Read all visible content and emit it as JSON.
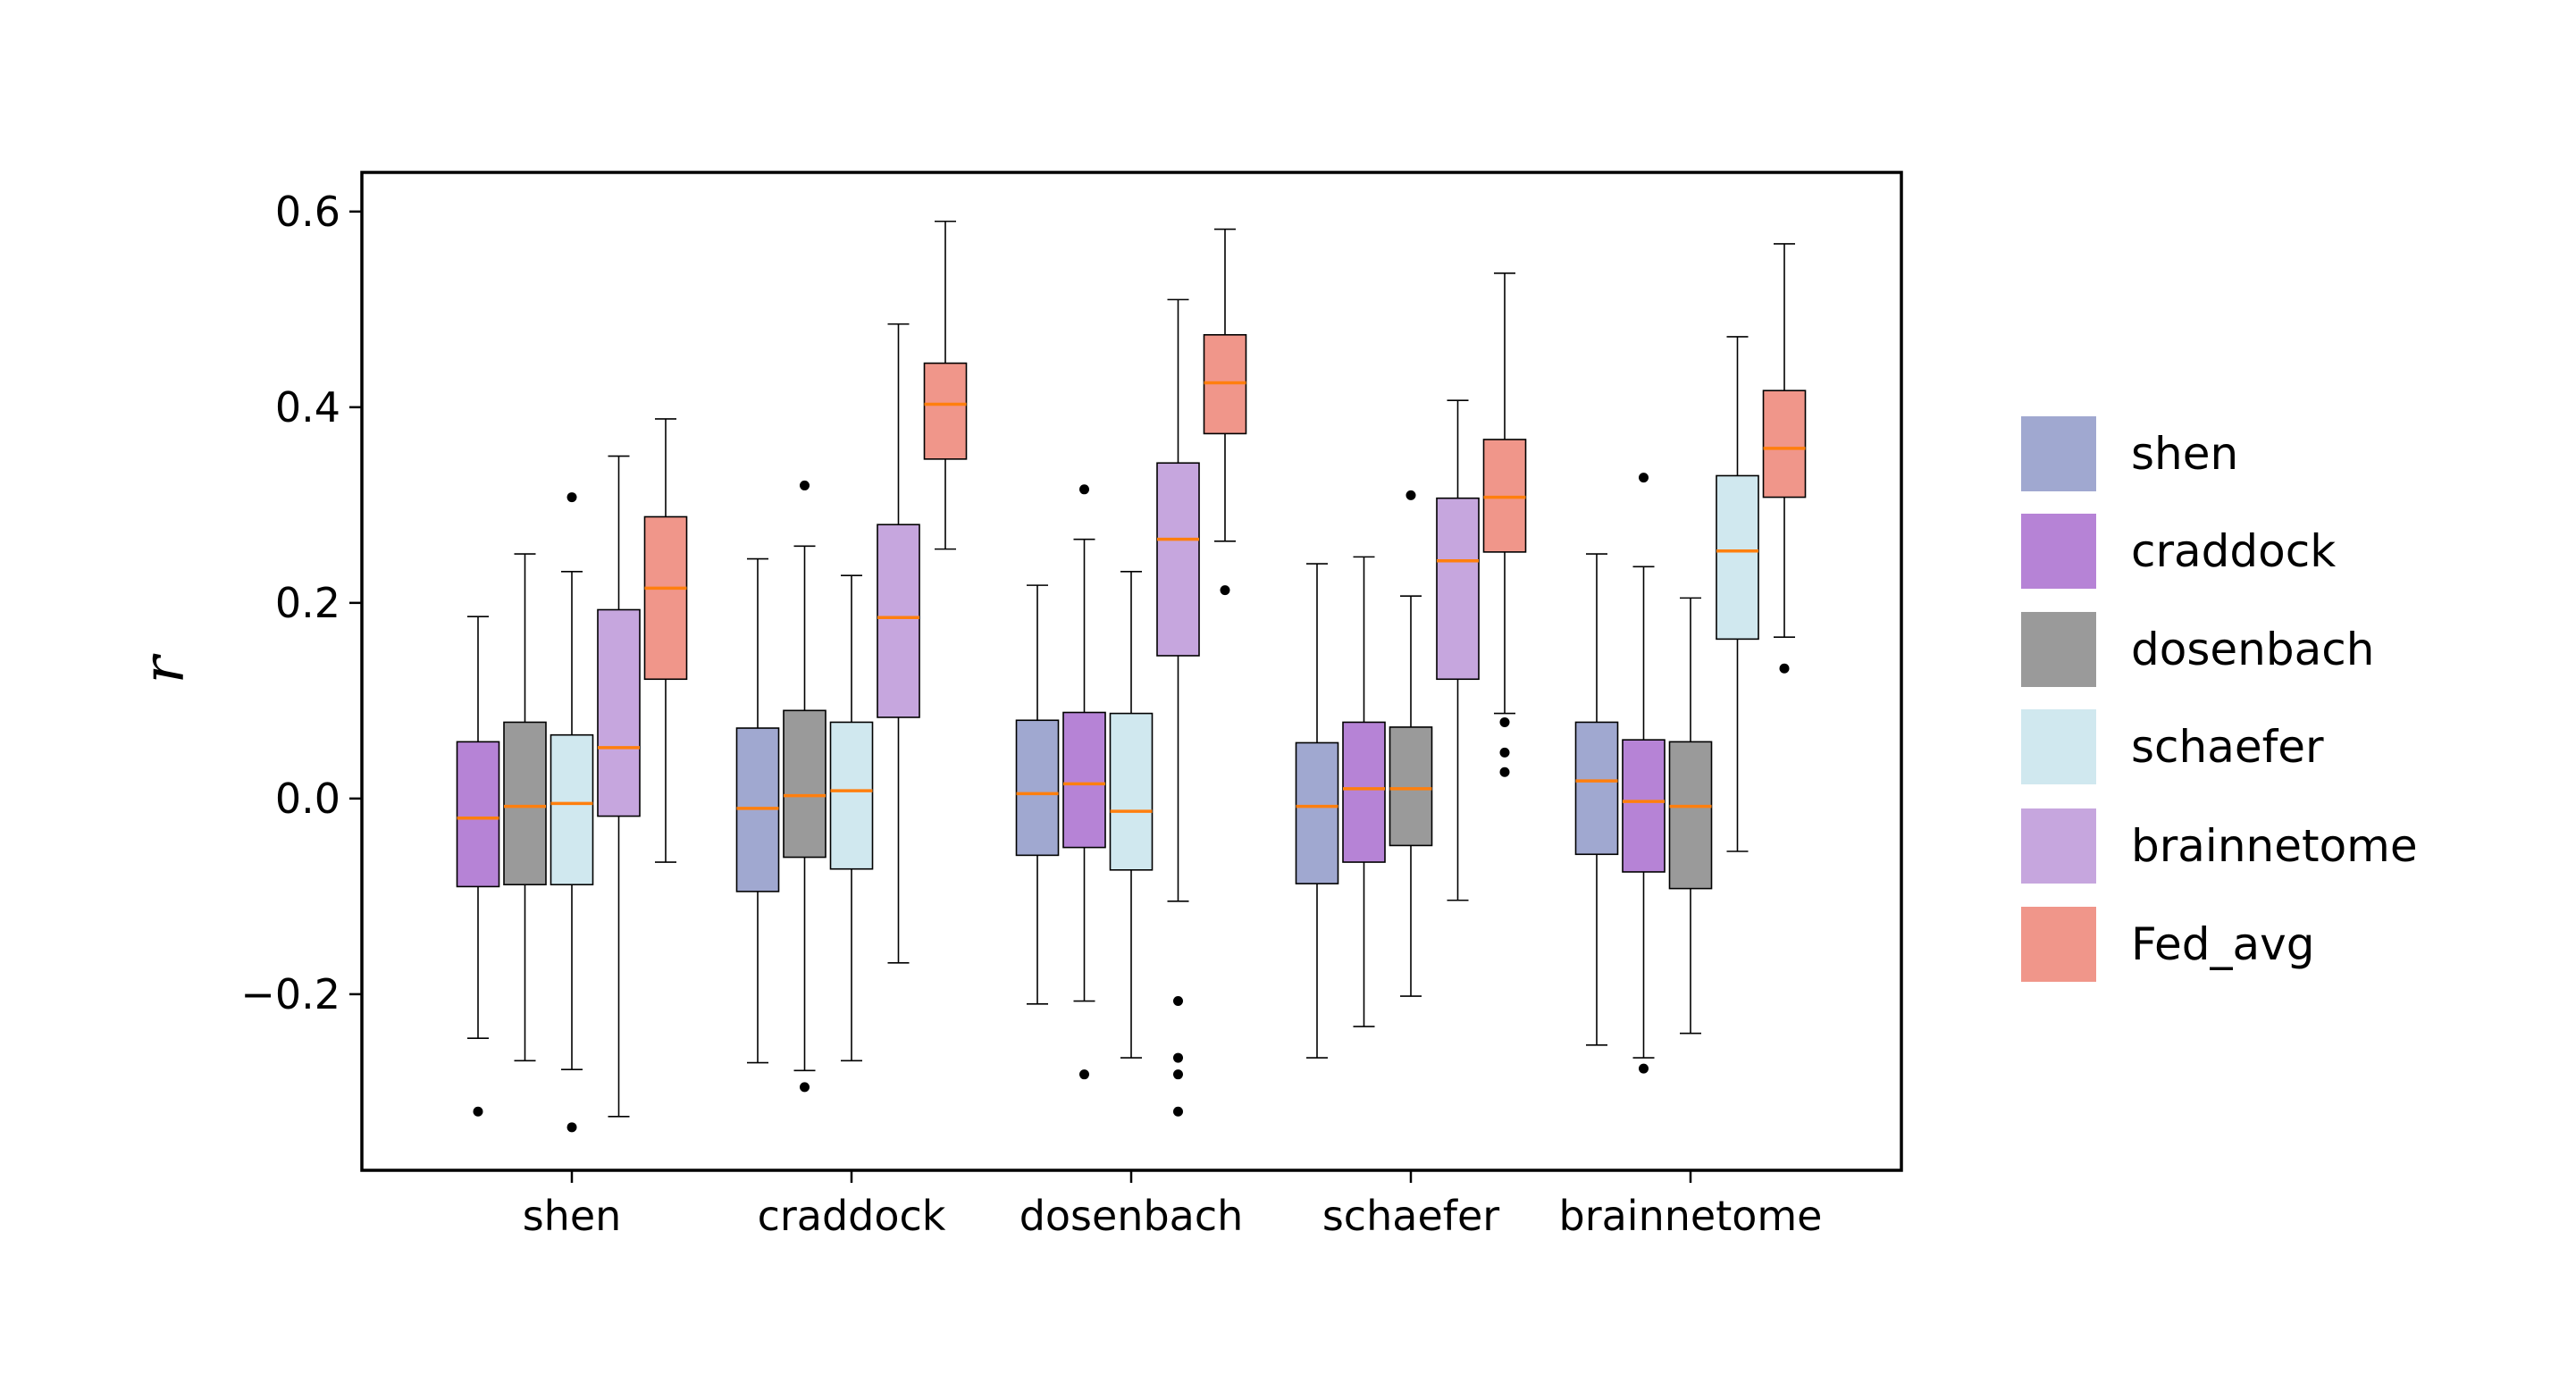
{
  "chart_data": {
    "type": "box",
    "xlabel": "",
    "ylabel": "r",
    "ylim": [
      -0.38,
      0.64
    ],
    "yticks": [
      -0.2,
      0.0,
      0.2,
      0.4,
      0.6
    ],
    "ytick_labels": [
      "−0.2",
      "0.0",
      "0.2",
      "0.4",
      "0.6"
    ],
    "categories": [
      "shen",
      "craddock",
      "dosenbach",
      "schaefer",
      "brainnetome"
    ],
    "legend": {
      "placement": "right-outside",
      "entries": [
        {
          "label": "shen",
          "color": "#a0a8d0"
        },
        {
          "label": "craddock",
          "color": "#b683d6"
        },
        {
          "label": "dosenbach",
          "color": "#9a9a9a"
        },
        {
          "label": "schaefer",
          "color": "#d0e8ef"
        },
        {
          "label": "brainnetome",
          "color": "#c6a6de"
        },
        {
          "label": "Fed_avg",
          "color": "#f0968a"
        }
      ]
    },
    "colors": {
      "shen": "#a0a8d0",
      "craddock": "#b683d6",
      "dosenbach": "#9a9a9a",
      "schaefer": "#d0e8ef",
      "brainnetome": "#c6a6de",
      "Fed_avg": "#f0968a",
      "median": "#ff7f0e"
    },
    "groups": [
      {
        "category": "shen",
        "boxes": [
          {
            "series": "craddock",
            "whislo": -0.245,
            "q1": -0.09,
            "med": -0.02,
            "q3": 0.058,
            "whishi": 0.186,
            "fliers": [
              -0.32
            ]
          },
          {
            "series": "dosenbach",
            "whislo": -0.268,
            "q1": -0.088,
            "med": -0.008,
            "q3": 0.078,
            "whishi": 0.25,
            "fliers": []
          },
          {
            "series": "schaefer",
            "whislo": -0.277,
            "q1": -0.088,
            "med": -0.005,
            "q3": 0.065,
            "whishi": 0.232,
            "fliers": [
              0.308,
              -0.336
            ]
          },
          {
            "series": "brainnetome",
            "whislo": -0.325,
            "q1": -0.018,
            "med": 0.052,
            "q3": 0.193,
            "whishi": 0.35,
            "fliers": []
          },
          {
            "series": "Fed_avg",
            "whislo": -0.065,
            "q1": 0.122,
            "med": 0.215,
            "q3": 0.288,
            "whishi": 0.388,
            "fliers": []
          }
        ]
      },
      {
        "category": "craddock",
        "boxes": [
          {
            "series": "shen",
            "whislo": -0.27,
            "q1": -0.095,
            "med": -0.01,
            "q3": 0.072,
            "whishi": 0.245,
            "fliers": []
          },
          {
            "series": "dosenbach",
            "whislo": -0.278,
            "q1": -0.06,
            "med": 0.003,
            "q3": 0.09,
            "whishi": 0.258,
            "fliers": [
              0.32,
              -0.295
            ]
          },
          {
            "series": "schaefer",
            "whislo": -0.268,
            "q1": -0.072,
            "med": 0.008,
            "q3": 0.078,
            "whishi": 0.228,
            "fliers": []
          },
          {
            "series": "brainnetome",
            "whislo": -0.168,
            "q1": 0.083,
            "med": 0.185,
            "q3": 0.28,
            "whishi": 0.485,
            "fliers": []
          },
          {
            "series": "Fed_avg",
            "whislo": 0.255,
            "q1": 0.347,
            "med": 0.403,
            "q3": 0.445,
            "whishi": 0.59,
            "fliers": []
          }
        ]
      },
      {
        "category": "dosenbach",
        "boxes": [
          {
            "series": "shen",
            "whislo": -0.21,
            "q1": -0.058,
            "med": 0.005,
            "q3": 0.08,
            "whishi": 0.218,
            "fliers": []
          },
          {
            "series": "craddock",
            "whislo": -0.207,
            "q1": -0.05,
            "med": 0.015,
            "q3": 0.088,
            "whishi": 0.265,
            "fliers": [
              0.316,
              -0.282
            ]
          },
          {
            "series": "schaefer",
            "whislo": -0.265,
            "q1": -0.073,
            "med": -0.013,
            "q3": 0.087,
            "whishi": 0.232,
            "fliers": []
          },
          {
            "series": "brainnetome",
            "whislo": -0.105,
            "q1": 0.146,
            "med": 0.265,
            "q3": 0.343,
            "whishi": 0.51,
            "fliers": [
              -0.207,
              -0.265,
              -0.282,
              -0.32
            ]
          },
          {
            "series": "Fed_avg",
            "whislo": 0.263,
            "q1": 0.373,
            "med": 0.425,
            "q3": 0.474,
            "whishi": 0.582,
            "fliers": [
              0.213
            ]
          }
        ]
      },
      {
        "category": "schaefer",
        "boxes": [
          {
            "series": "shen",
            "whislo": -0.265,
            "q1": -0.087,
            "med": -0.008,
            "q3": 0.057,
            "whishi": 0.24,
            "fliers": []
          },
          {
            "series": "craddock",
            "whislo": -0.233,
            "q1": -0.065,
            "med": 0.01,
            "q3": 0.078,
            "whishi": 0.247,
            "fliers": []
          },
          {
            "series": "dosenbach",
            "whislo": -0.202,
            "q1": -0.048,
            "med": 0.01,
            "q3": 0.073,
            "whishi": 0.207,
            "fliers": [
              0.31
            ]
          },
          {
            "series": "brainnetome",
            "whislo": -0.104,
            "q1": 0.122,
            "med": 0.243,
            "q3": 0.307,
            "whishi": 0.407,
            "fliers": []
          },
          {
            "series": "Fed_avg",
            "whislo": 0.087,
            "q1": 0.252,
            "med": 0.308,
            "q3": 0.367,
            "whishi": 0.537,
            "fliers": [
              0.078,
              0.047,
              0.027
            ]
          }
        ]
      },
      {
        "category": "brainnetome",
        "boxes": [
          {
            "series": "shen",
            "whislo": -0.252,
            "q1": -0.057,
            "med": 0.018,
            "q3": 0.078,
            "whishi": 0.25,
            "fliers": []
          },
          {
            "series": "craddock",
            "whislo": -0.265,
            "q1": -0.075,
            "med": -0.003,
            "q3": 0.06,
            "whishi": 0.237,
            "fliers": [
              0.328,
              -0.276
            ]
          },
          {
            "series": "dosenbach",
            "whislo": -0.24,
            "q1": -0.092,
            "med": -0.008,
            "q3": 0.058,
            "whishi": 0.205,
            "fliers": []
          },
          {
            "series": "schaefer",
            "whislo": -0.054,
            "q1": 0.163,
            "med": 0.253,
            "q3": 0.33,
            "whishi": 0.472,
            "fliers": []
          },
          {
            "series": "Fed_avg",
            "whislo": 0.165,
            "q1": 0.308,
            "med": 0.358,
            "q3": 0.417,
            "whishi": 0.567,
            "fliers": [
              0.133
            ]
          }
        ]
      }
    ]
  }
}
